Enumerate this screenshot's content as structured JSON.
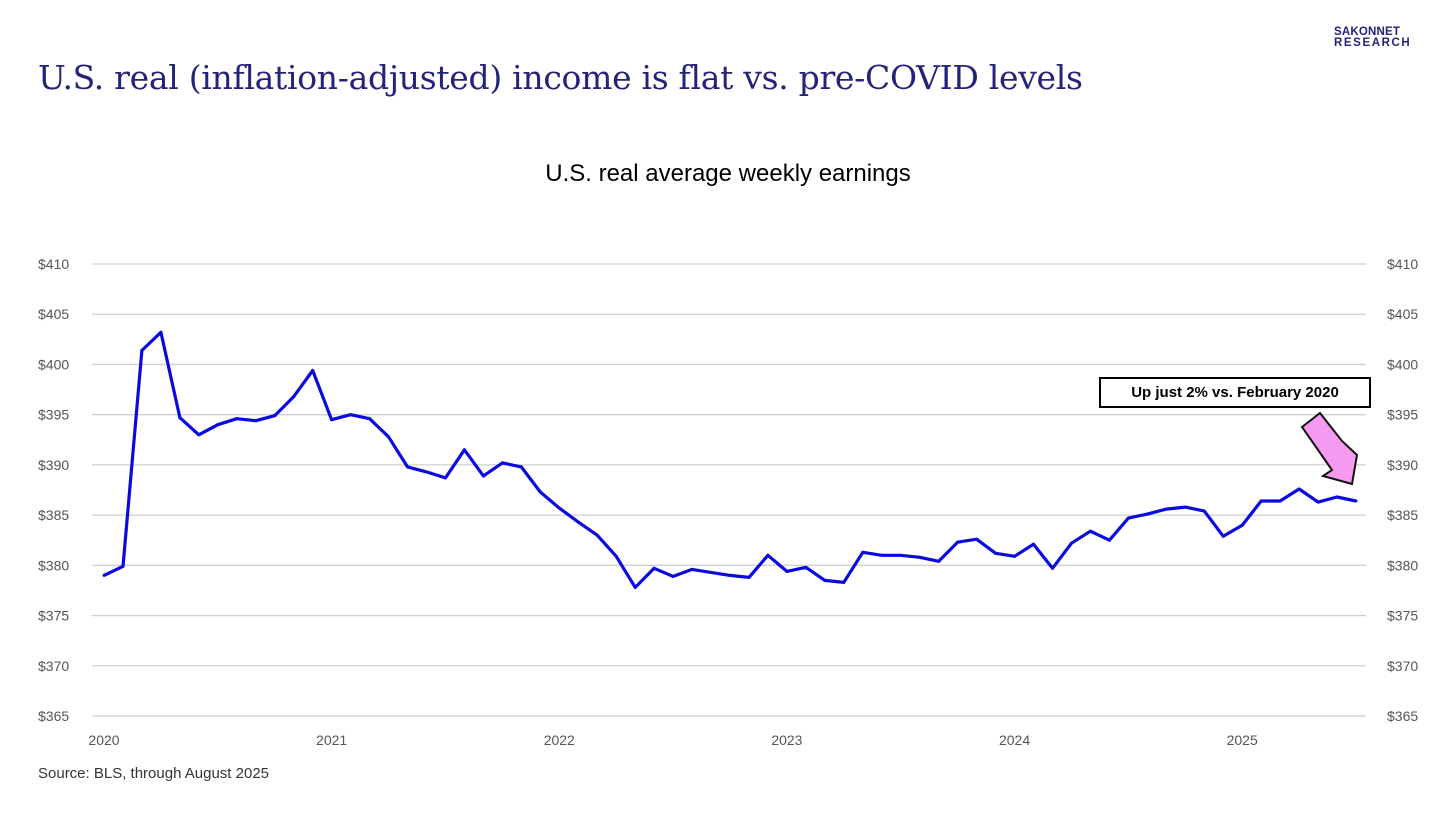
{
  "page": {
    "title": "U.S. real (inflation-adjusted) income is flat vs. pre-COVID levels",
    "logo": [
      "SAKONNET",
      "RESEARCH"
    ],
    "source": "Source: BLS, through August 2025"
  },
  "colors": {
    "line": "#0a0ae0",
    "title": "#23237a",
    "arrow": "#f59af0",
    "grid": "#d0d0d0"
  },
  "chart_data": {
    "type": "line",
    "title": "U.S. real average weekly earnings",
    "xlabel": "",
    "ylabel": "",
    "ylim": [
      365,
      410
    ],
    "yticks": [
      410,
      405,
      400,
      395,
      390,
      385,
      380,
      375,
      370,
      365
    ],
    "ytick_labels": [
      "$410",
      "$405",
      "$400",
      "$395",
      "$390",
      "$385",
      "$380",
      "$375",
      "$370",
      "$365"
    ],
    "xtick_labels": [
      "2020",
      "2021",
      "2022",
      "2023",
      "2024",
      "2025"
    ],
    "xtick_index": [
      0,
      12,
      24,
      36,
      48,
      60
    ],
    "grid": true,
    "dual_y_axis": true,
    "series": [
      {
        "name": "Real average weekly earnings",
        "start": "2020-01",
        "frequency": "monthly",
        "values": [
          379.0,
          379.9,
          401.4,
          403.2,
          394.7,
          393.0,
          394.0,
          394.6,
          394.4,
          394.9,
          396.8,
          399.4,
          394.5,
          395.0,
          394.6,
          392.8,
          389.8,
          389.3,
          388.7,
          391.5,
          388.9,
          390.2,
          389.8,
          387.3,
          385.7,
          384.3,
          383.0,
          380.9,
          377.8,
          379.7,
          378.9,
          379.6,
          379.3,
          379.0,
          378.8,
          381.0,
          379.4,
          379.8,
          378.5,
          378.3,
          381.3,
          381.0,
          381.0,
          380.8,
          380.4,
          382.3,
          382.6,
          381.2,
          380.9,
          382.1,
          379.7,
          382.2,
          383.4,
          382.5,
          384.7,
          385.1,
          385.6,
          385.8,
          385.4,
          382.9,
          384.0,
          386.4,
          386.4,
          387.6,
          386.3,
          386.8,
          386.4
        ]
      }
    ],
    "annotations": [
      {
        "text": "Up just 2% vs. February 2020",
        "points_to": "last value"
      }
    ]
  }
}
